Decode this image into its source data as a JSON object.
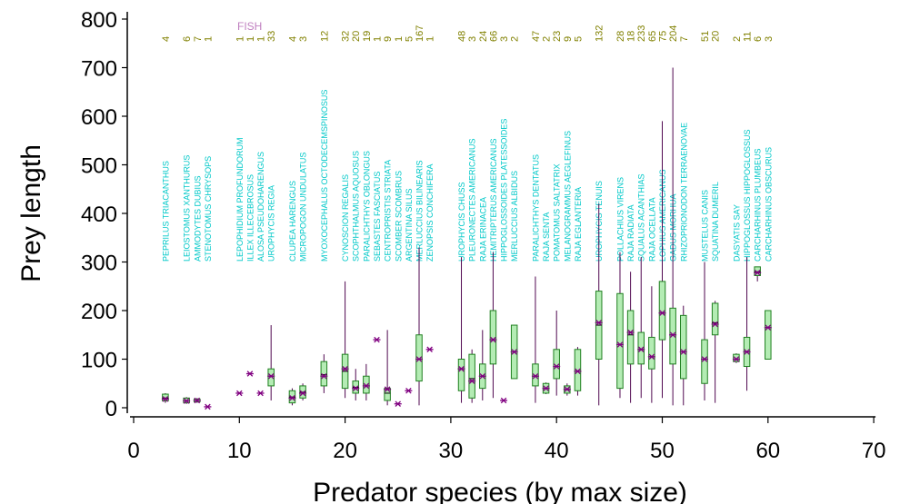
{
  "chart_data": {
    "type": "box",
    "xlabel": "Predator species (by max size)",
    "ylabel": "Prey length",
    "xlim": [
      0,
      70
    ],
    "ylim": [
      0,
      800
    ],
    "xticks": [
      0,
      10,
      20,
      30,
      40,
      50,
      60,
      70
    ],
    "yticks": [
      0,
      100,
      200,
      300,
      400,
      500,
      600,
      700,
      800
    ],
    "group_label": "FISH",
    "colors": {
      "label_text": "#00c8c8",
      "count_text": "#808000",
      "box_fill": "#b4ecb4",
      "box_edge": "#208020",
      "whisker": "#500850",
      "mean_marker": "#800080",
      "group_label": "#c080c0"
    },
    "species": [
      {
        "x": 3,
        "name": "PEPRILUS TRIACANTHUS",
        "n": "4",
        "q1": 14,
        "q3": 28,
        "median": 20,
        "mean": 18,
        "min": 10,
        "max": 30
      },
      {
        "x": 5,
        "name": "LEIOSTOMUS XANTHURUS",
        "n": "6",
        "q1": 10,
        "q3": 20,
        "median": 14,
        "mean": 14,
        "min": 8,
        "max": 22
      },
      {
        "x": 6,
        "name": "AMMODYTES DUBIUS",
        "n": "7",
        "q1": 12,
        "q3": 18,
        "median": 15,
        "mean": 15,
        "min": 10,
        "max": 20
      },
      {
        "x": 7,
        "name": "STENOTOMUS CHRYSOPS",
        "n": "1",
        "mean": 2
      },
      {
        "x": 10,
        "name": "LEPOPHIDIUM PROFUNDORUM",
        "n": "1",
        "mean": 30
      },
      {
        "x": 11,
        "name": "ILLEX ILLECEBROSUS",
        "n": "1",
        "mean": 70
      },
      {
        "x": 12,
        "name": "ALOSA PSEUDOHARENGUS",
        "n": "1",
        "mean": 30
      },
      {
        "x": 13,
        "name": "UROPHYCIS REGIA",
        "n": "33",
        "q1": 45,
        "q3": 80,
        "median": 65,
        "mean": 65,
        "min": 15,
        "max": 170
      },
      {
        "x": 15,
        "name": "CLUPEA HARENGUS",
        "n": "4",
        "q1": 10,
        "q3": 35,
        "median": 22,
        "mean": 20,
        "min": 5,
        "max": 40
      },
      {
        "x": 16,
        "name": "MICROPOGON UNDULATUS",
        "n": "3",
        "q1": 20,
        "q3": 45,
        "median": 32,
        "mean": 30,
        "min": 15,
        "max": 50
      },
      {
        "x": 18,
        "name": "MYOXOCEPHALUS OCTODECEMSPINOSUS",
        "n": "12",
        "q1": 45,
        "q3": 95,
        "median": 68,
        "mean": 65,
        "min": 30,
        "max": 110
      },
      {
        "x": 20,
        "name": "CYNOSCION REGALIS",
        "n": "32",
        "q1": 40,
        "q3": 110,
        "median": 75,
        "mean": 80,
        "min": 20,
        "max": 260
      },
      {
        "x": 21,
        "name": "SCOPHTHALMUS AQUOSUS",
        "n": "20",
        "q1": 30,
        "q3": 55,
        "median": 42,
        "mean": 40,
        "min": 15,
        "max": 80
      },
      {
        "x": 22,
        "name": "PARALICHTHYS OBLONGUS",
        "n": "19",
        "q1": 30,
        "q3": 65,
        "median": 45,
        "mean": 45,
        "min": 15,
        "max": 90
      },
      {
        "x": 23,
        "name": "SEBASTES FASCIATUS",
        "n": "1",
        "mean": 140
      },
      {
        "x": 24,
        "name": "CENTROPRISTIS STRIATA",
        "n": "9",
        "q1": 15,
        "q3": 40,
        "median": 30,
        "mean": 38,
        "min": 5,
        "max": 160
      },
      {
        "x": 25,
        "name": "SCOMBER SCOMBRUS",
        "n": "1",
        "mean": 8
      },
      {
        "x": 26,
        "name": "ARGENTINA SILUS",
        "n": "5",
        "mean": 35
      },
      {
        "x": 27,
        "name": "MERLUCCIUS BILINEARIS",
        "n": "167",
        "q1": 55,
        "q3": 150,
        "median": 100,
        "mean": 100,
        "min": 5,
        "max": 330
      },
      {
        "x": 28,
        "name": "ZENOPSIS CONCHIFERA",
        "n": "1",
        "mean": 120
      },
      {
        "x": 31,
        "name": "UROPHYCIS CHUSS",
        "n": "48",
        "q1": 35,
        "q3": 100,
        "median": 80,
        "mean": 80,
        "min": 10,
        "max": 310
      },
      {
        "x": 32,
        "name": "PLEURONECTES AMERICANUS",
        "n": "3",
        "q1": 20,
        "q3": 110,
        "median": 60,
        "mean": 55,
        "min": 10,
        "max": 120
      },
      {
        "x": 33,
        "name": "RAJA ERINACEA",
        "n": "24",
        "q1": 40,
        "q3": 90,
        "median": 65,
        "mean": 65,
        "min": 15,
        "max": 160
      },
      {
        "x": 34,
        "name": "HEMITRIPTERUS AMERICANUS",
        "n": "66",
        "q1": 90,
        "q3": 200,
        "median": 140,
        "mean": 140,
        "min": 20,
        "max": 320
      },
      {
        "x": 35,
        "name": "HIPPOGLOSSOIDES PLATESSOIDES",
        "n": "3",
        "mean": 15
      },
      {
        "x": 36,
        "name": "MERLUCCIUS ALBIDUS",
        "n": "2",
        "q1": 60,
        "q3": 170,
        "median": 115,
        "mean": 115,
        "min": 60,
        "max": 170
      },
      {
        "x": 38,
        "name": "PARALICHTHYS DENTATUS",
        "n": "47",
        "q1": 45,
        "q3": 90,
        "median": 65,
        "mean": 65,
        "min": 10,
        "max": 270
      },
      {
        "x": 39,
        "name": "RAJA SENTA",
        "n": "2",
        "q1": 30,
        "q3": 50,
        "median": 40,
        "mean": 40,
        "min": 28,
        "max": 52
      },
      {
        "x": 40,
        "name": "POMATOMUS SALTATRIX",
        "n": "23",
        "q1": 60,
        "q3": 120,
        "median": 85,
        "mean": 85,
        "min": 25,
        "max": 200
      },
      {
        "x": 41,
        "name": "MELANOGRAMMUS AEGLEFINUS",
        "n": "9",
        "q1": 30,
        "q3": 45,
        "median": 38,
        "mean": 38,
        "min": 25,
        "max": 50
      },
      {
        "x": 42,
        "name": "RAJA EGLANTERIA",
        "n": "5",
        "q1": 35,
        "q3": 120,
        "median": 75,
        "mean": 75,
        "min": 25,
        "max": 125
      },
      {
        "x": 44,
        "name": "UROPHYCIS TENUIS",
        "n": "132",
        "q1": 100,
        "q3": 240,
        "median": 170,
        "mean": 175,
        "min": 5,
        "max": 420
      },
      {
        "x": 46,
        "name": "POLLACHIUS VIRENS",
        "n": "28",
        "q1": 40,
        "q3": 235,
        "median": 130,
        "mean": 130,
        "min": 20,
        "max": 320
      },
      {
        "x": 47,
        "name": "RAJA RADIATA",
        "n": "18",
        "q1": 90,
        "q3": 200,
        "median": 150,
        "mean": 155,
        "min": 10,
        "max": 280
      },
      {
        "x": 48,
        "name": "SQUALUS ACANTHIAS",
        "n": "233",
        "q1": 90,
        "q3": 155,
        "median": 120,
        "mean": 120,
        "min": 20,
        "max": 310
      },
      {
        "x": 49,
        "name": "RAJA OCELLATA",
        "n": "65",
        "q1": 80,
        "q3": 145,
        "median": 105,
        "mean": 105,
        "min": 10,
        "max": 250
      },
      {
        "x": 50,
        "name": "LOPHIUS AMERICANUS",
        "n": "75",
        "q1": 140,
        "q3": 260,
        "median": 195,
        "mean": 195,
        "min": 20,
        "max": 590
      },
      {
        "x": 51,
        "name": "GADUS MORHUA",
        "n": "204",
        "q1": 90,
        "q3": 205,
        "median": 150,
        "mean": 150,
        "min": 5,
        "max": 700
      },
      {
        "x": 52,
        "name": "RHIZOPRIONODON TERRAENOVAE",
        "n": "7",
        "q1": 60,
        "q3": 190,
        "median": 115,
        "mean": 115,
        "min": 5,
        "max": 210
      },
      {
        "x": 54,
        "name": "MUSTELUS CANIS",
        "n": "51",
        "q1": 50,
        "q3": 140,
        "median": 100,
        "mean": 100,
        "min": 15,
        "max": 300
      },
      {
        "x": 55,
        "name": "SQUATINA DUMERIL",
        "n": "20",
        "q1": 150,
        "q3": 215,
        "median": 175,
        "mean": 172,
        "min": 10,
        "max": 220
      },
      {
        "x": 57,
        "name": "DASYATIS SAY",
        "n": "2",
        "q1": 95,
        "q3": 110,
        "median": 100,
        "mean": 100,
        "min": 92,
        "max": 112
      },
      {
        "x": 58,
        "name": "HIPPOGLOSSUS HIPPOGLOSSUS",
        "n": "11",
        "q1": 85,
        "q3": 145,
        "median": 115,
        "mean": 115,
        "min": 35,
        "max": 310
      },
      {
        "x": 59,
        "name": "CARCHARHINUS PLUMBEUS",
        "n": "6",
        "q1": 272,
        "q3": 290,
        "median": 280,
        "mean": 278,
        "min": 260,
        "max": 290
      },
      {
        "x": 60,
        "name": "CARCHARHINUS OBSCURUS",
        "n": "3",
        "q1": 100,
        "q3": 200,
        "median": 165,
        "mean": 165,
        "min": 100,
        "max": 200
      }
    ]
  }
}
